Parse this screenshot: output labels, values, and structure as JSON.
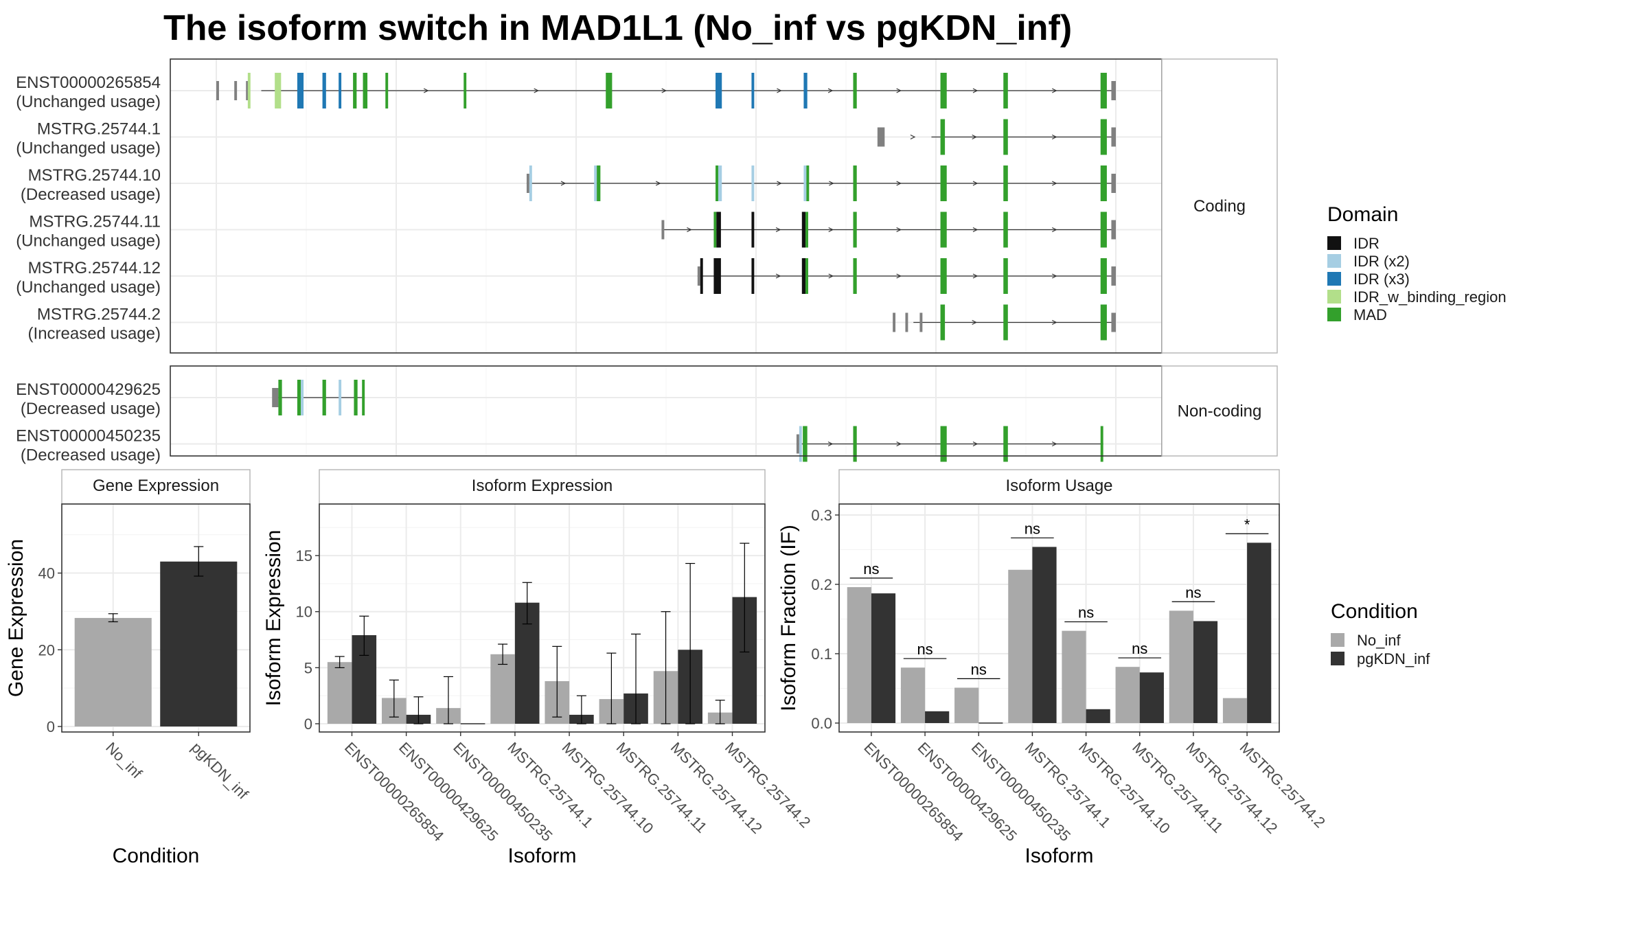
{
  "title": "The isoform switch in MAD1L1 (No_inf vs pgKDN_inf)",
  "structure": {
    "x_range": [
      0,
      100
    ],
    "facets": [
      {
        "label": "Coding",
        "transcripts": [
          {
            "id": "ENST00000265854",
            "usage": "(Unchanged usage)",
            "line": [
              5,
              100
            ],
            "utr": [
              [
                0,
                0.3
              ],
              [
                2,
                2.3
              ],
              [
                3.3,
                3.5
              ],
              [
                99.5,
                100
              ]
            ],
            "exons": [
              [
                3.5,
                3.8,
                "IDR_w_binding_region"
              ],
              [
                6.5,
                7.2,
                "IDR_w_binding_region"
              ],
              [
                9.0,
                9.7,
                "IDR (x3)"
              ],
              [
                11.8,
                12.2,
                "IDR (x3)"
              ],
              [
                13.6,
                13.9,
                "IDR (x3)"
              ],
              [
                15.2,
                15.6,
                "MAD"
              ],
              [
                16.3,
                16.8,
                "MAD"
              ],
              [
                18.8,
                19.1,
                "MAD"
              ],
              [
                27.5,
                27.8,
                "MAD"
              ],
              [
                43.3,
                44.0,
                "MAD"
              ],
              [
                55.5,
                56.2,
                "IDR (x3)"
              ],
              [
                59.5,
                59.8,
                "IDR (x3)"
              ],
              [
                65.3,
                65.7,
                "IDR (x3)"
              ],
              [
                70.8,
                71.2,
                "MAD"
              ],
              [
                80.5,
                81.2,
                "MAD"
              ],
              [
                87.5,
                88.0,
                "MAD"
              ],
              [
                98.3,
                99.0,
                "MAD"
              ]
            ]
          },
          {
            "id": "MSTRG.25744.1",
            "usage": "(Unchanged usage)",
            "line": [
              79.5,
              100
            ],
            "utr": [
              [
                73.5,
                74.3
              ],
              [
                99.5,
                100
              ]
            ],
            "exons": [
              [
                80.5,
                81.0,
                "MAD"
              ],
              [
                87.5,
                88.0,
                "MAD"
              ],
              [
                98.3,
                99.0,
                "MAD"
              ]
            ]
          },
          {
            "id": "MSTRG.25744.10",
            "usage": "(Decreased usage)",
            "line": [
              34.5,
              100
            ],
            "utr": [
              [
                34.5,
                34.8
              ],
              [
                99.5,
                100
              ]
            ],
            "exons": [
              [
                34.8,
                35.1,
                "IDR (x2)"
              ],
              [
                42.0,
                42.3,
                "IDR (x2)"
              ],
              [
                42.3,
                42.7,
                "MAD"
              ],
              [
                55.5,
                55.8,
                "MAD"
              ],
              [
                55.8,
                56.2,
                "IDR (x2)"
              ],
              [
                59.5,
                59.8,
                "IDR (x2)"
              ],
              [
                65.3,
                65.6,
                "IDR (x2)"
              ],
              [
                65.6,
                65.9,
                "MAD"
              ],
              [
                70.8,
                71.2,
                "MAD"
              ],
              [
                80.5,
                81.2,
                "MAD"
              ],
              [
                87.5,
                88.0,
                "MAD"
              ],
              [
                98.3,
                99.0,
                "MAD"
              ]
            ]
          },
          {
            "id": "MSTRG.25744.11",
            "usage": "(Unchanged usage)",
            "line": [
              49.5,
              100
            ],
            "utr": [
              [
                49.5,
                49.8
              ],
              [
                99.5,
                100
              ]
            ],
            "exons": [
              [
                55.3,
                55.6,
                "MAD"
              ],
              [
                55.6,
                56.1,
                "IDR"
              ],
              [
                59.5,
                59.8,
                "IDR"
              ],
              [
                65.1,
                65.5,
                "IDR"
              ],
              [
                65.5,
                65.8,
                "MAD"
              ],
              [
                70.8,
                71.2,
                "MAD"
              ],
              [
                80.5,
                81.2,
                "MAD"
              ],
              [
                87.5,
                88.0,
                "MAD"
              ],
              [
                98.3,
                99.0,
                "MAD"
              ]
            ]
          },
          {
            "id": "MSTRG.25744.12",
            "usage": "(Unchanged usage)",
            "line": [
              53.5,
              100
            ],
            "utr": [
              [
                53.5,
                53.8
              ],
              [
                99.5,
                100
              ]
            ],
            "exons": [
              [
                53.8,
                54.1,
                "IDR"
              ],
              [
                55.3,
                56.1,
                "IDR"
              ],
              [
                59.5,
                59.8,
                "IDR"
              ],
              [
                65.1,
                65.5,
                "IDR"
              ],
              [
                65.5,
                65.8,
                "MAD"
              ],
              [
                70.8,
                71.2,
                "MAD"
              ],
              [
                80.5,
                81.2,
                "MAD"
              ],
              [
                87.5,
                88.0,
                "MAD"
              ],
              [
                98.3,
                99.0,
                "MAD"
              ]
            ]
          },
          {
            "id": "MSTRG.25744.2",
            "usage": "(Increased usage)",
            "line": [
              77.5,
              100
            ],
            "utr": [
              [
                75.2,
                75.5
              ],
              [
                76.6,
                76.9
              ],
              [
                78.2,
                78.5
              ],
              [
                99.5,
                100
              ]
            ],
            "exons": [
              [
                80.5,
                81.0,
                "MAD"
              ],
              [
                87.5,
                88.0,
                "MAD"
              ],
              [
                98.3,
                99.0,
                "MAD"
              ]
            ]
          }
        ]
      },
      {
        "label": "Non-coding",
        "transcripts": [
          {
            "id": "ENST00000429625",
            "usage": "(Decreased usage)",
            "line": [
              6.5,
              16.5
            ],
            "utr": [
              [
                6.2,
                6.9
              ]
            ],
            "exons": [
              [
                6.9,
                7.3,
                "MAD"
              ],
              [
                9.0,
                9.4,
                "MAD"
              ],
              [
                9.4,
                9.7,
                "IDR (x2)"
              ],
              [
                11.8,
                12.2,
                "MAD"
              ],
              [
                13.6,
                13.9,
                "IDR (x2)"
              ],
              [
                15.3,
                15.7,
                "MAD"
              ],
              [
                16.2,
                16.5,
                "MAD"
              ]
            ]
          },
          {
            "id": "ENST00000450235",
            "usage": "(Decreased usage)",
            "line": [
              64.5,
              98.6
            ],
            "utr": [
              [
                64.5,
                64.8
              ]
            ],
            "exons": [
              [
                64.8,
                65.1,
                "IDR (x2)"
              ],
              [
                65.2,
                65.7,
                "MAD"
              ],
              [
                70.8,
                71.2,
                "MAD"
              ],
              [
                80.5,
                81.2,
                "MAD"
              ],
              [
                87.5,
                88.0,
                "MAD"
              ],
              [
                98.3,
                98.6,
                "MAD"
              ]
            ]
          }
        ]
      }
    ]
  },
  "domain_legend": {
    "title": "Domain",
    "items": [
      {
        "label": "IDR",
        "color": "#111111"
      },
      {
        "label": "IDR (x2)",
        "color": "#a6cee3"
      },
      {
        "label": "IDR (x3)",
        "color": "#1f78b4"
      },
      {
        "label": "IDR_w_binding_region",
        "color": "#b2df8a"
      },
      {
        "label": "MAD",
        "color": "#33a02c"
      }
    ]
  },
  "condition_legend": {
    "title": "Condition",
    "items": [
      {
        "label": "No_inf",
        "color": "#a9a9a9"
      },
      {
        "label": "pgKDN_inf",
        "color": "#333333"
      }
    ]
  },
  "chart_data": [
    {
      "type": "bar",
      "title": "Gene Expression",
      "xlabel": "Condition",
      "ylabel": "Gene Expression",
      "ylim": [
        0,
        58
      ],
      "yticks": [
        0,
        20,
        40
      ],
      "categories": [
        "No_inf",
        "pgKDN_inf"
      ],
      "values": [
        28.3,
        43.0
      ],
      "errors": [
        [
          27.3,
          29.4
        ],
        [
          39.2,
          46.9
        ]
      ]
    },
    {
      "type": "bar",
      "title": "Isoform Expression",
      "xlabel": "Isoform",
      "ylabel": "Isoform Expression",
      "ylim": [
        0,
        19.6
      ],
      "yticks": [
        0,
        5,
        10,
        15
      ],
      "categories": [
        "ENST00000265854",
        "ENST00000429625",
        "ENST00000450235",
        "MSTRG.25744.1",
        "MSTRG.25744.10",
        "MSTRG.25744.11",
        "MSTRG.25744.12",
        "MSTRG.25744.2"
      ],
      "series": [
        {
          "name": "No_inf",
          "values": [
            5.5,
            2.3,
            1.4,
            6.2,
            3.8,
            2.2,
            4.7,
            1.0
          ],
          "errors": [
            [
              5.0,
              6.0
            ],
            [
              0.6,
              3.9
            ],
            [
              0.0,
              4.2
            ],
            [
              5.3,
              7.1
            ],
            [
              0.6,
              6.9
            ],
            [
              0.0,
              6.3
            ],
            [
              0.0,
              10.0
            ],
            [
              0.0,
              2.1
            ]
          ]
        },
        {
          "name": "pgKDN_inf",
          "values": [
            7.9,
            0.8,
            0.0,
            10.8,
            0.8,
            2.7,
            6.6,
            11.3
          ],
          "errors": [
            [
              6.1,
              9.6
            ],
            [
              0.0,
              2.4
            ],
            null,
            [
              8.9,
              12.6
            ],
            [
              0.0,
              2.5
            ],
            [
              0.0,
              8.0
            ],
            [
              0.0,
              14.3
            ],
            [
              6.4,
              16.1
            ]
          ]
        }
      ]
    },
    {
      "type": "bar",
      "title": "Isoform Usage",
      "xlabel": "Isoform",
      "ylabel": "Isoform Fraction (IF)",
      "ylim": [
        0,
        0.3
      ],
      "yticks": [
        0.0,
        0.1,
        0.2,
        0.3
      ],
      "ytick_labels": [
        "0.0",
        "0.1",
        "0.2",
        "0.3"
      ],
      "categories": [
        "ENST00000265854",
        "ENST00000429625",
        "ENST00000450235",
        "MSTRG.25744.1",
        "MSTRG.25744.10",
        "MSTRG.25744.11",
        "MSTRG.25744.12",
        "MSTRG.25744.2"
      ],
      "series": [
        {
          "name": "No_inf",
          "values": [
            0.196,
            0.08,
            0.051,
            0.221,
            0.133,
            0.081,
            0.162,
            0.036
          ]
        },
        {
          "name": "pgKDN_inf",
          "values": [
            0.187,
            0.017,
            0.0,
            0.254,
            0.02,
            0.073,
            0.147,
            0.26
          ]
        }
      ],
      "significance": [
        "ns",
        "ns",
        "ns",
        "ns",
        "ns",
        "ns",
        "ns",
        "*"
      ],
      "significance_y": [
        0.209,
        0.093,
        0.064,
        0.267,
        0.146,
        0.094,
        0.175,
        0.273
      ]
    }
  ]
}
